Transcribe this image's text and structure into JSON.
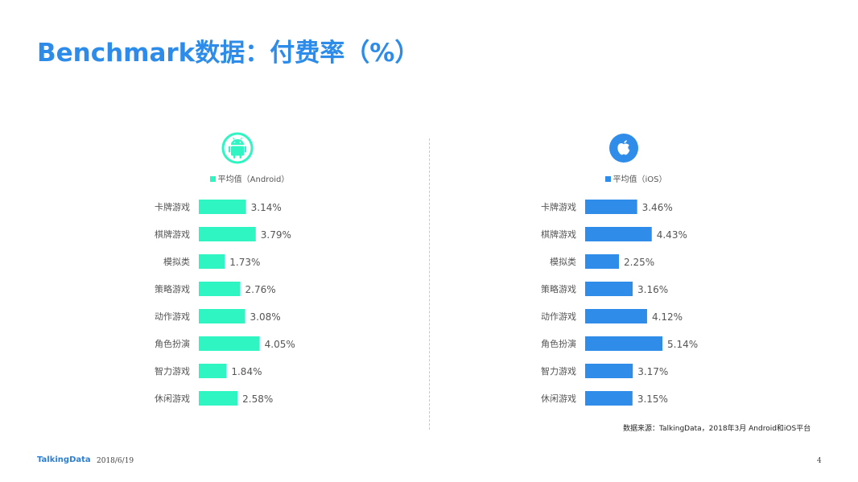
{
  "title": "Benchmark数据：付费率（%）",
  "source": "数据来源：TalkingData，2018年3月 Android和iOS平台",
  "footer": {
    "logo": "TalkingData",
    "date": "2018/6/19",
    "page": "4"
  },
  "icons": {
    "left": "android-icon",
    "right": "apple-icon"
  },
  "colors": {
    "title": "#2d8ce9",
    "android": "#2ff5c2",
    "ios": "#2f8ce8"
  },
  "chart_data": [
    {
      "type": "bar",
      "orientation": "horizontal",
      "legend": "平均值（Android）",
      "color": "#2ff5c2",
      "categories": [
        "卡牌游戏",
        "棋牌游戏",
        "模拟类",
        "策略游戏",
        "动作游戏",
        "角色扮演",
        "智力游戏",
        "休闲游戏"
      ],
      "values": [
        3.14,
        3.79,
        1.73,
        2.76,
        3.08,
        4.05,
        1.84,
        2.58
      ],
      "labels": [
        "3.14%",
        "3.79%",
        "1.73%",
        "2.76%",
        "3.08%",
        "4.05%",
        "1.84%",
        "2.58%"
      ],
      "xlim": [
        0,
        5.14
      ]
    },
    {
      "type": "bar",
      "orientation": "horizontal",
      "legend": "平均值（iOS）",
      "color": "#2f8ce8",
      "categories": [
        "卡牌游戏",
        "棋牌游戏",
        "模拟类",
        "策略游戏",
        "动作游戏",
        "角色扮演",
        "智力游戏",
        "休闲游戏"
      ],
      "values": [
        3.46,
        4.43,
        2.25,
        3.16,
        4.12,
        5.14,
        3.17,
        3.15
      ],
      "labels": [
        "3.46%",
        "4.43%",
        "2.25%",
        "3.16%",
        "4.12%",
        "5.14%",
        "3.17%",
        "3.15%"
      ],
      "xlim": [
        0,
        5.14
      ]
    }
  ]
}
